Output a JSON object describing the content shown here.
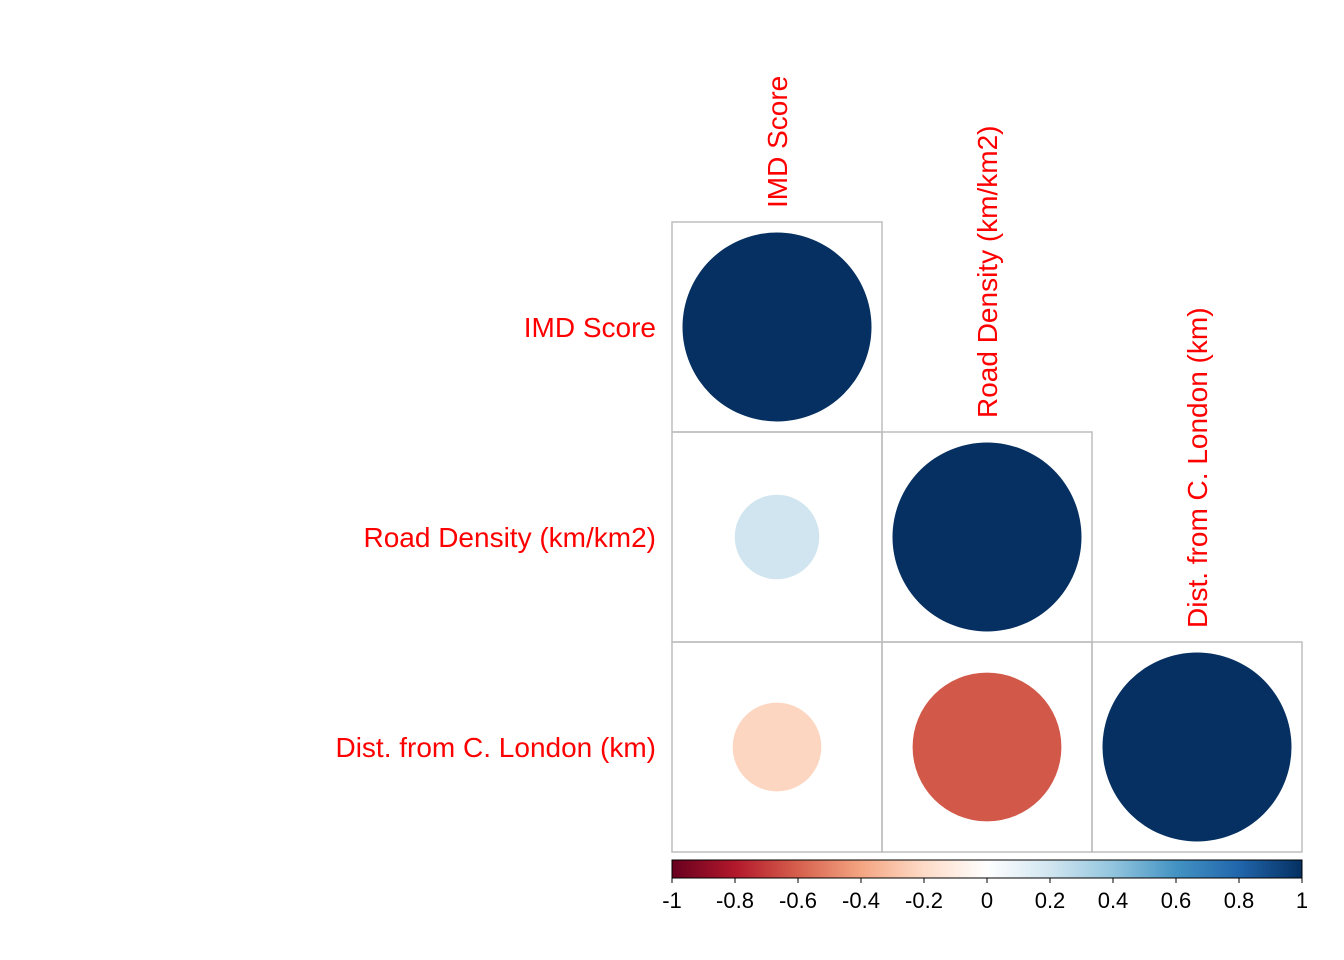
{
  "chart_data": {
    "type": "heatmap",
    "subtype": "correlation-matrix-lower-triangle-circles",
    "variables": [
      "IMD Score",
      "Road Density (km/km2)",
      "Dist. from C. London (km)"
    ],
    "matrix": [
      [
        1.0,
        null,
        null
      ],
      [
        0.2,
        1.0,
        null
      ],
      [
        -0.22,
        -0.62,
        1.0
      ]
    ],
    "scale": {
      "min": -1,
      "max": 1,
      "ticks": [
        "-1",
        "-0.8",
        "-0.6",
        "-0.4",
        "-0.2",
        "0",
        "0.2",
        "0.4",
        "0.6",
        "0.8",
        "1"
      ],
      "colors": [
        "#67001f",
        "#b2182b",
        "#d6604d",
        "#f4a582",
        "#fddbc7",
        "#ffffff",
        "#d1e5f0",
        "#92c5de",
        "#4393c3",
        "#2166ac",
        "#053061"
      ]
    },
    "label_color": "#ff0000",
    "grid": true,
    "legend": "bottom"
  }
}
